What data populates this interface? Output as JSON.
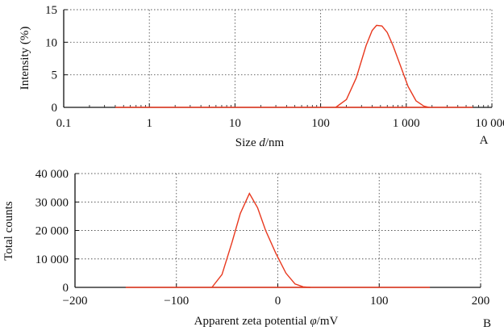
{
  "colors": {
    "series": "#e8381e"
  },
  "chart_data": [
    {
      "type": "line",
      "panel_label": "A",
      "x_scale": "log",
      "xlabel": {
        "prefix": "Size ",
        "italic": "d",
        "suffix": "/nm"
      },
      "ylabel": "Intensity (%)",
      "xlim": [
        0.1,
        10000
      ],
      "ylim": [
        0,
        15
      ],
      "x_ticks": [
        {
          "value": 0.1,
          "label": "0.1"
        },
        {
          "value": 1,
          "label": "1"
        },
        {
          "value": 10,
          "label": "10"
        },
        {
          "value": 100,
          "label": "100"
        },
        {
          "value": 1000,
          "label": "1 000"
        },
        {
          "value": 10000,
          "label": "10 000"
        }
      ],
      "y_ticks": [
        {
          "value": 0,
          "label": "0"
        },
        {
          "value": 5,
          "label": "5"
        },
        {
          "value": 10,
          "label": "10"
        },
        {
          "value": 15,
          "label": "15"
        }
      ],
      "grid": true,
      "baseline_range": [
        0.4,
        6000
      ],
      "series": [
        {
          "x": [
            150,
            200,
            260,
            340,
            400,
            450,
            520,
            600,
            700,
            850,
            1050,
            1300,
            1600,
            1850
          ],
          "y": [
            0,
            1.2,
            4.5,
            9.5,
            11.8,
            12.6,
            12.5,
            11.5,
            9.5,
            6.5,
            3.2,
            1.0,
            0.2,
            0
          ]
        }
      ]
    },
    {
      "type": "line",
      "panel_label": "B",
      "x_scale": "linear",
      "xlabel": {
        "prefix": "Apparent zeta potential ",
        "italic": "φ",
        "suffix": "/mV"
      },
      "ylabel": "Total counts",
      "xlim": [
        -200,
        200
      ],
      "ylim": [
        0,
        40000
      ],
      "x_ticks": [
        {
          "value": -200,
          "label": "−200"
        },
        {
          "value": -100,
          "label": "−100"
        },
        {
          "value": 0,
          "label": "0"
        },
        {
          "value": 100,
          "label": "100"
        },
        {
          "value": 200,
          "label": "200"
        }
      ],
      "y_ticks": [
        {
          "value": 0,
          "label": "0"
        },
        {
          "value": 10000,
          "label": "10 000"
        },
        {
          "value": 20000,
          "label": "20 000"
        },
        {
          "value": 30000,
          "label": "30 000"
        },
        {
          "value": 40000,
          "label": "40 000"
        }
      ],
      "grid": true,
      "baseline_range": [
        -150,
        150
      ],
      "series": [
        {
          "x": [
            -65,
            -55,
            -45,
            -37,
            -28,
            -20,
            -12,
            -2,
            8,
            17,
            25,
            32
          ],
          "y": [
            0,
            4500,
            16000,
            26000,
            33000,
            28000,
            20000,
            12000,
            5000,
            1200,
            200,
            0
          ]
        }
      ]
    }
  ]
}
